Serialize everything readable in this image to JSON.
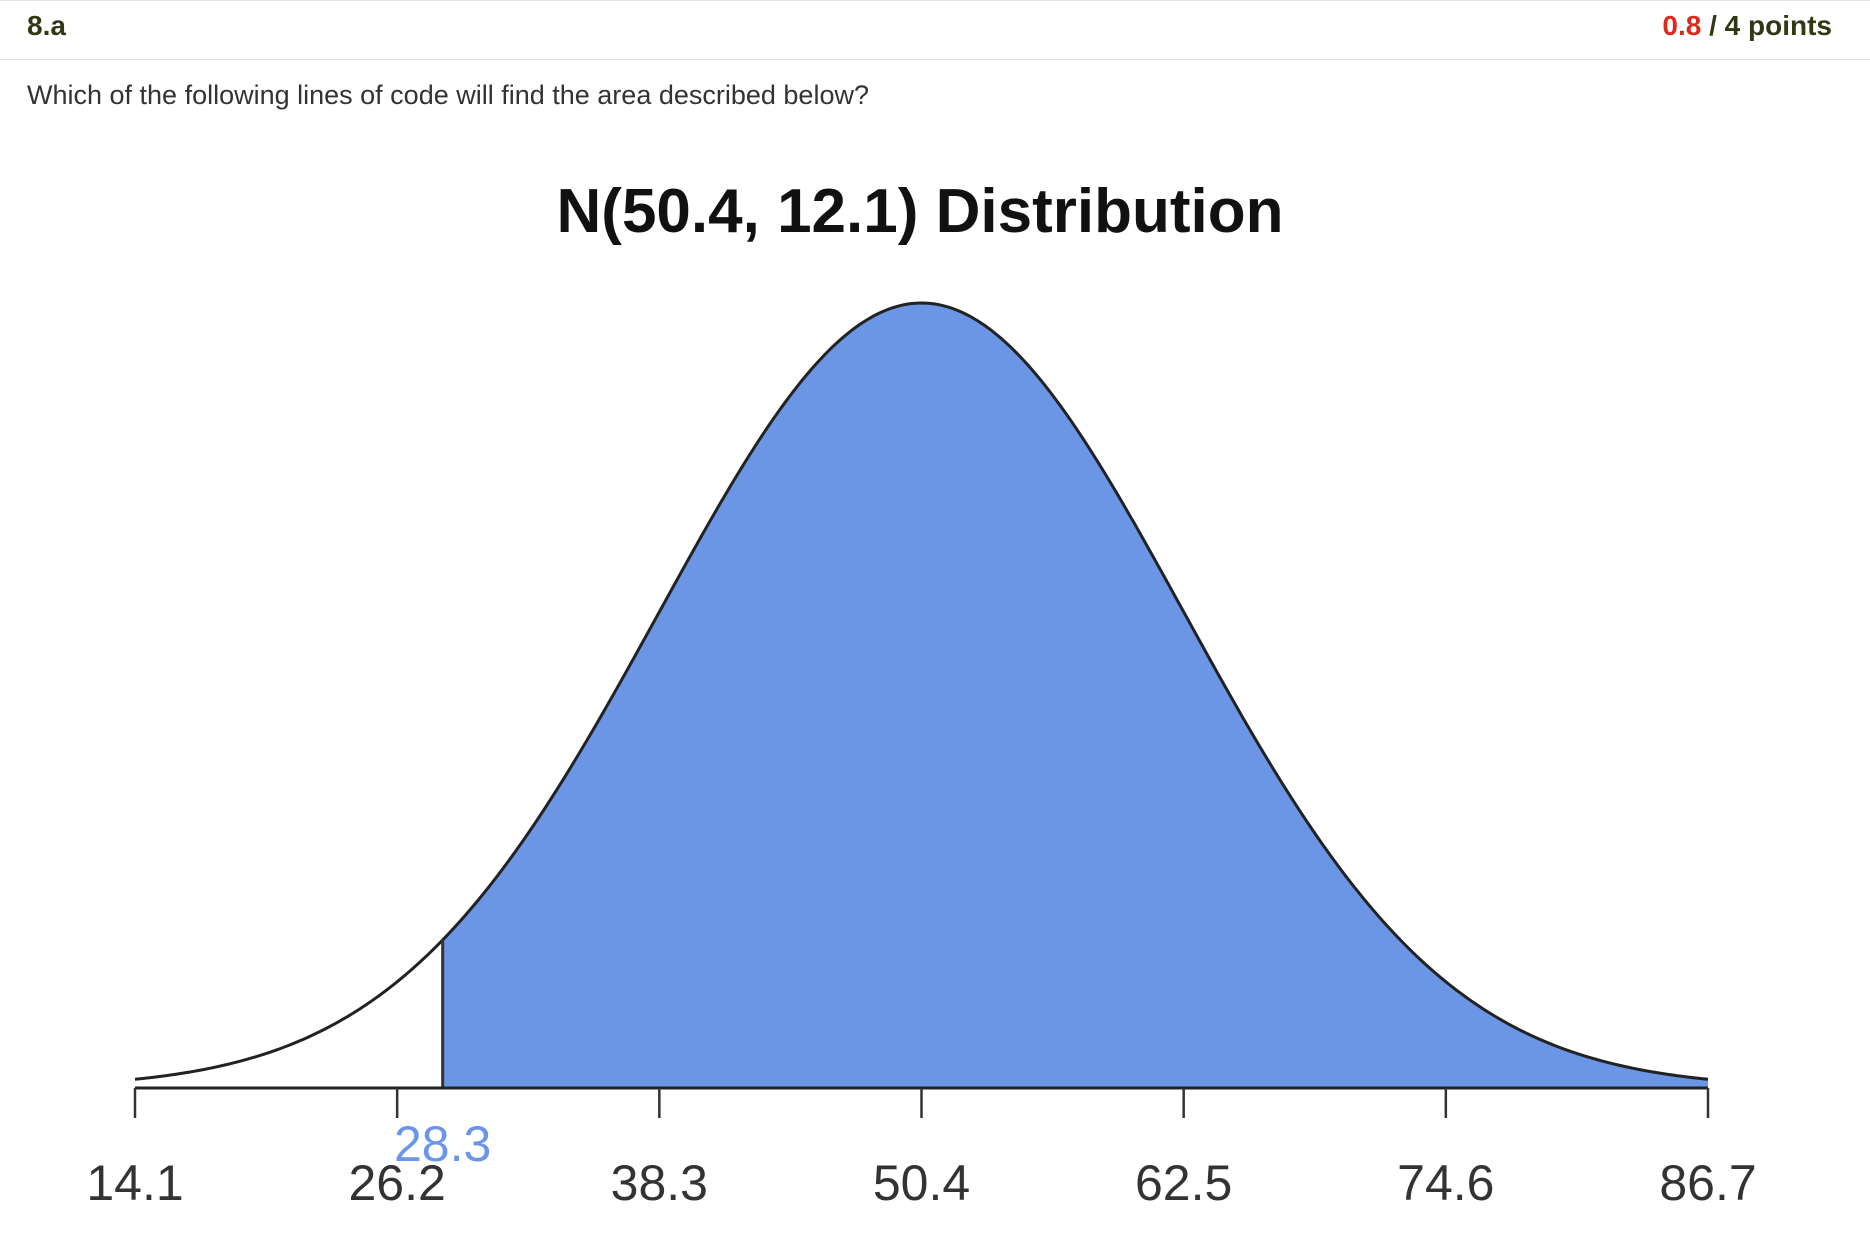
{
  "question": {
    "number": "8.a",
    "points_earned": "0.8",
    "points_total": "/ 4 points",
    "prompt": "Which of the following lines of code will find the area described below?"
  },
  "colors": {
    "shade": "#6b95e5",
    "cutoff_label": "#6b95ea",
    "earned": "#d92a1c",
    "header_text": "#2f3a14"
  },
  "chart_data": {
    "type": "area",
    "title": "N(50.4, 12.1) Distribution",
    "distribution": "normal",
    "mean": 50.4,
    "sd": 12.1,
    "xlim": [
      14.1,
      86.7
    ],
    "tick_labels": [
      "14.1",
      "26.2",
      "38.3",
      "50.4",
      "62.5",
      "74.6",
      "86.7"
    ],
    "ticks": [
      14.1,
      26.2,
      38.3,
      50.4,
      62.5,
      74.6,
      86.7
    ],
    "shaded_region": {
      "from": 28.3,
      "to": 86.7,
      "direction": "upper tail"
    },
    "cutoff_label": "28.3"
  }
}
